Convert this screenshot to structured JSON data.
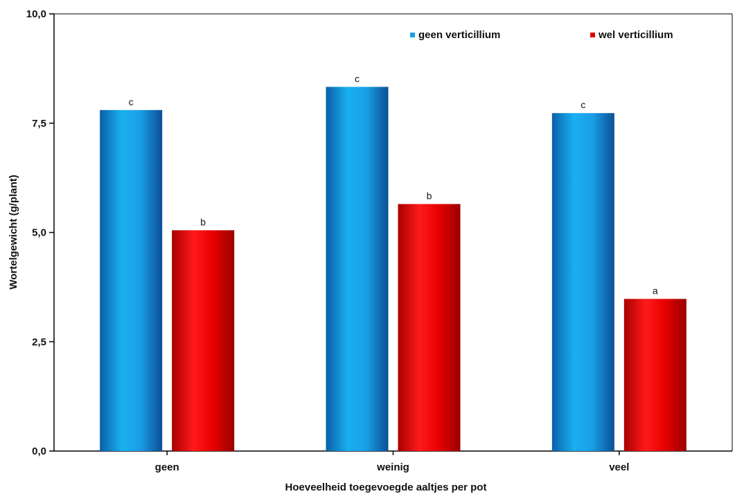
{
  "chart_data": {
    "type": "bar",
    "title": "",
    "xlabel": "Hoeveelheid toegevoegde aaltjes  per pot",
    "ylabel": "Wortelgewicht (g/plant)",
    "categories": [
      "geen",
      "weinig",
      "veel"
    ],
    "ylim": [
      0,
      10
    ],
    "yticks": [
      {
        "value": 0,
        "label": "0,0"
      },
      {
        "value": 2.5,
        "label": "2,5"
      },
      {
        "value": 5,
        "label": "5,0"
      },
      {
        "value": 7.5,
        "label": "7,5"
      },
      {
        "value": 10,
        "label": "10,0"
      }
    ],
    "series": [
      {
        "name": "geen verticillium",
        "color": "#1a9ee6",
        "values": [
          7.8,
          8.33,
          7.73
        ],
        "labels": [
          "c",
          "c",
          "c"
        ]
      },
      {
        "name": "wel verticillium",
        "color": "#e00000",
        "values": [
          5.05,
          5.65,
          3.48
        ],
        "labels": [
          "b",
          "b",
          "a"
        ]
      }
    ],
    "grid": false,
    "legend_position": "top-right"
  }
}
